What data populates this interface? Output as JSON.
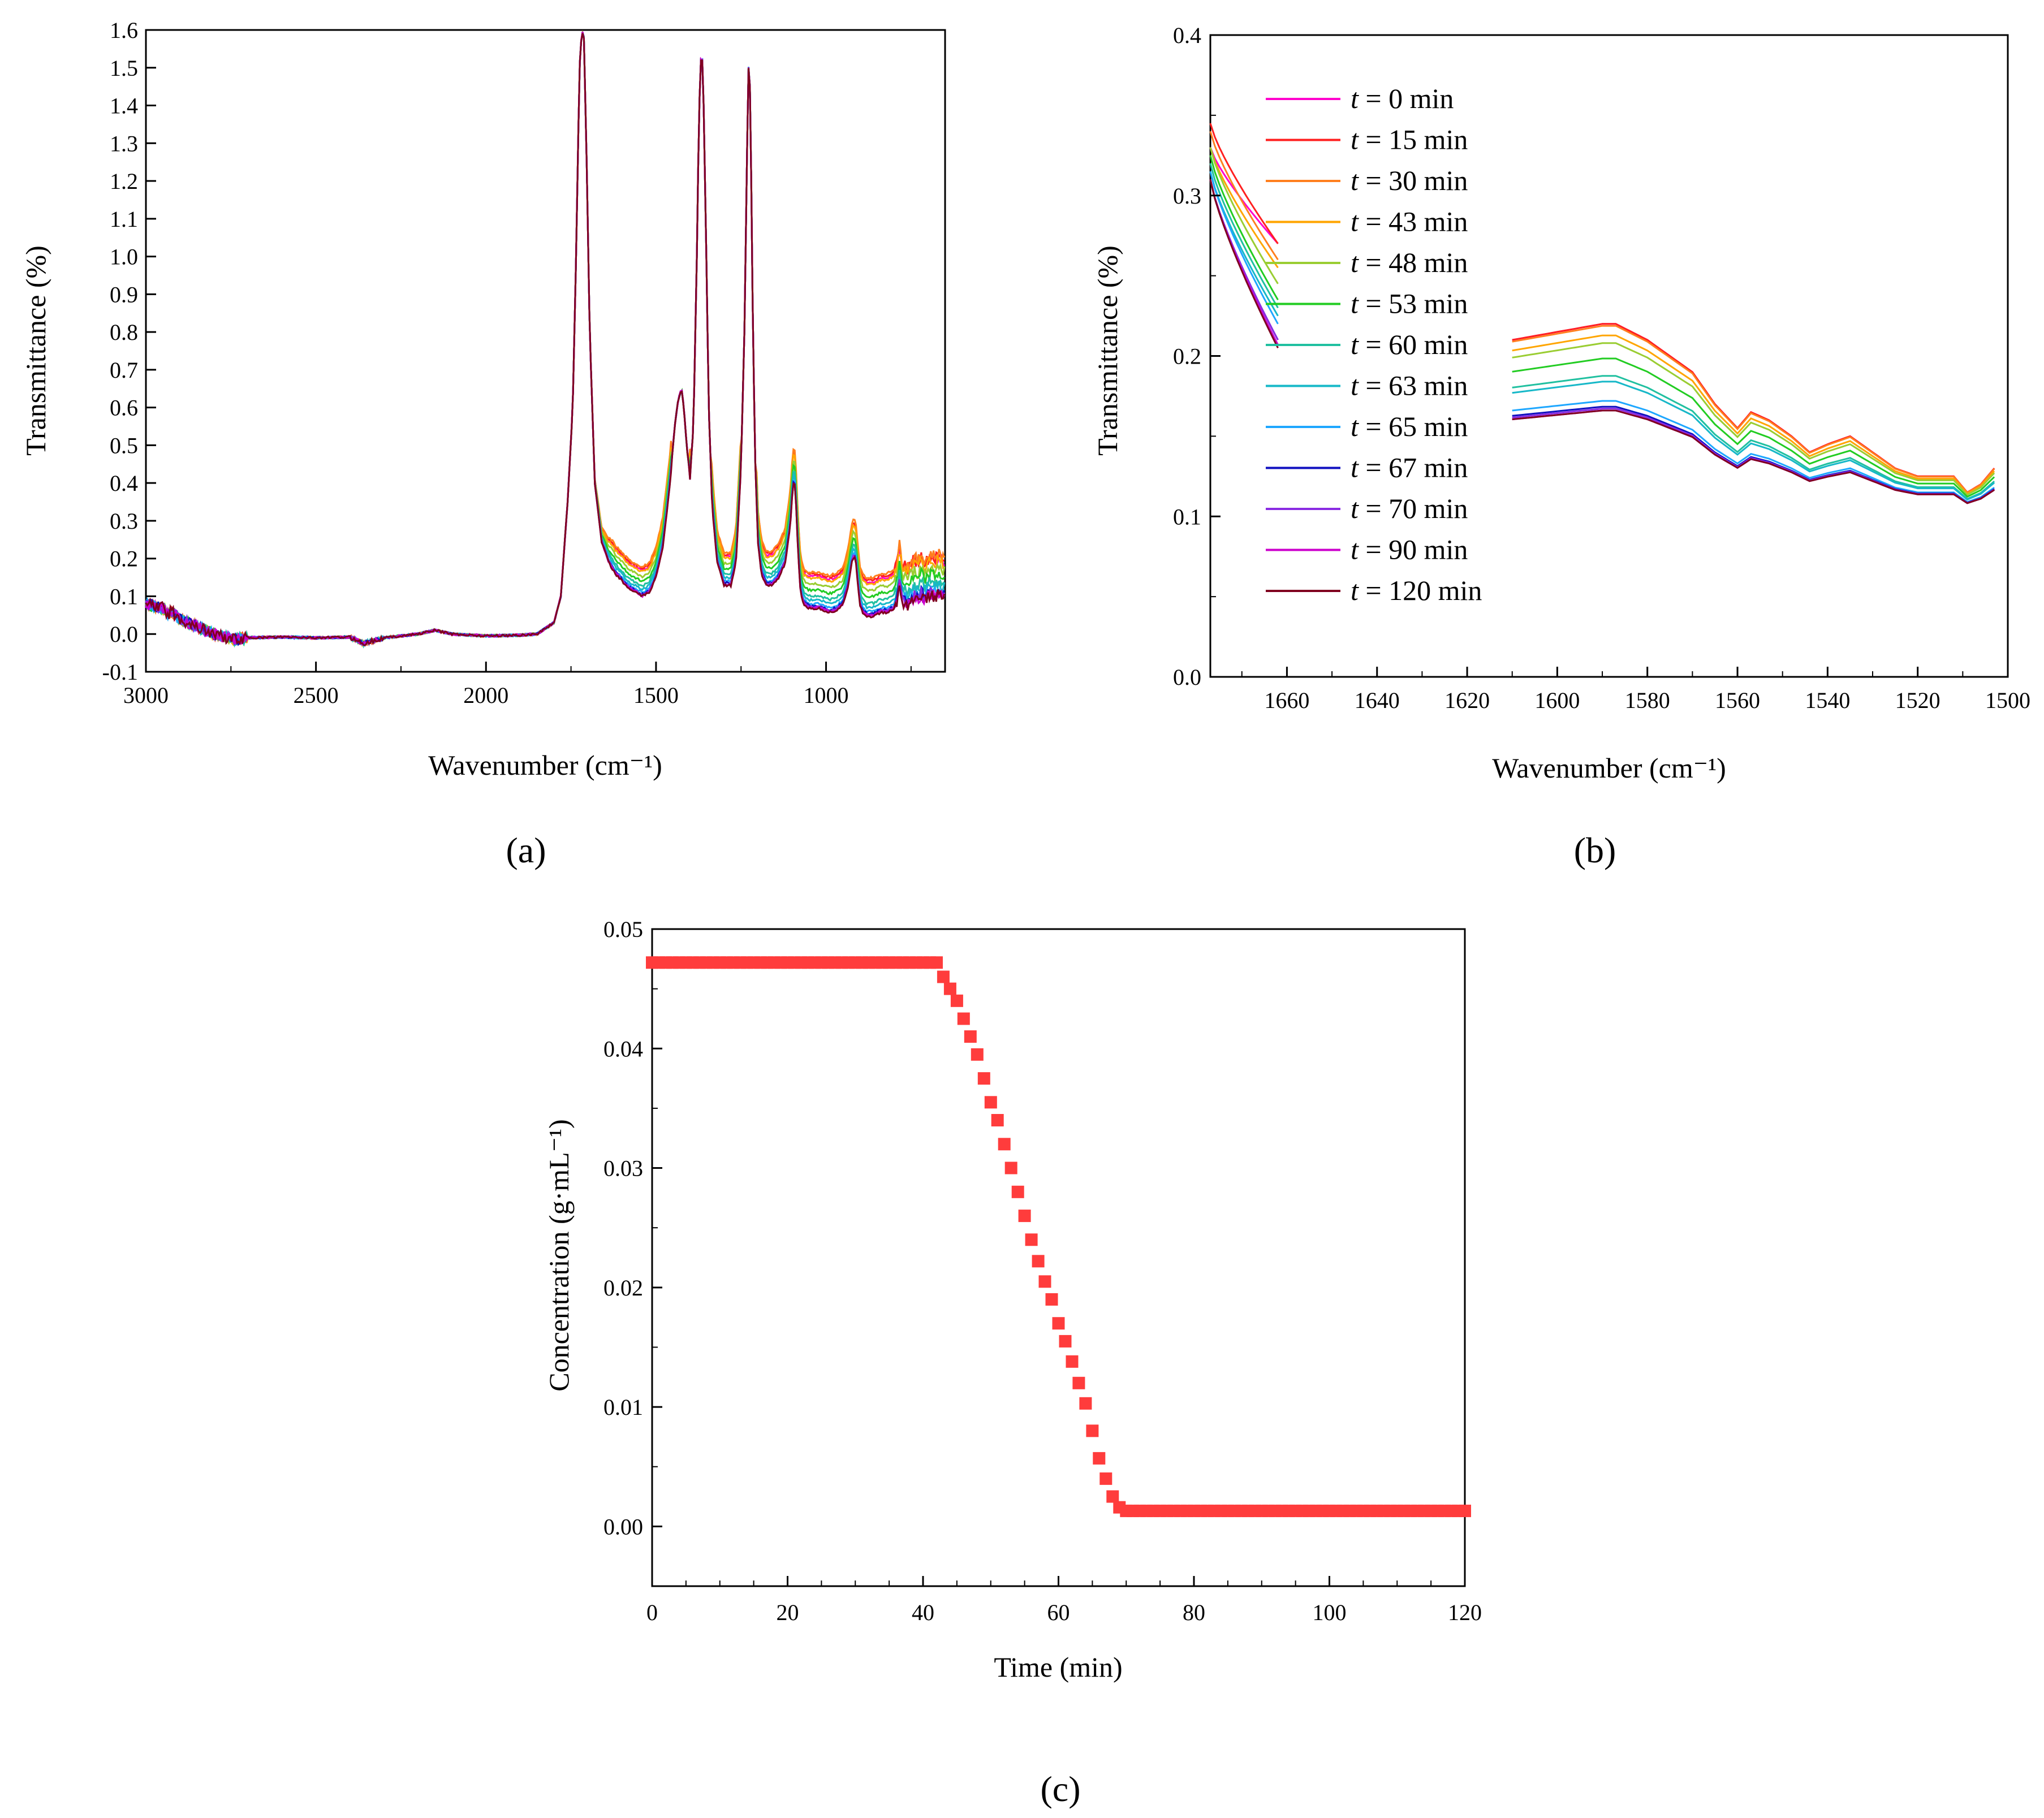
{
  "figure": {
    "panel_labels": {
      "a": "(a)",
      "b": "(b)",
      "c": "(c)"
    }
  },
  "chart_data": [
    {
      "id": "a",
      "type": "line",
      "xlabel": "Wavenumber (cm⁻¹)",
      "ylabel": "Transmittance (%)",
      "xlim": [
        3000,
        650
      ],
      "ylim": [
        -0.1,
        1.6
      ],
      "x_ticks": [
        3000,
        2500,
        2000,
        1500,
        1000
      ],
      "x_tick_labels": [
        "3000",
        "2500",
        "2000",
        "1500",
        "1000"
      ],
      "y_ticks": [
        -0.1,
        0.0,
        0.1,
        0.2,
        0.3,
        0.4,
        0.5,
        0.6,
        0.7,
        0.8,
        0.9,
        1.0,
        1.1,
        1.2,
        1.3,
        1.4,
        1.5,
        1.6
      ],
      "y_tick_labels": [
        "-0.1",
        "0.0",
        "0.1",
        "0.2",
        "0.3",
        "0.4",
        "0.5",
        "0.6",
        "0.7",
        "0.8",
        "0.9",
        "1.0",
        "1.1",
        "1.2",
        "1.3",
        "1.4",
        "1.5",
        "1.6"
      ],
      "base_x": [
        3000,
        2960,
        2950,
        2935,
        2925,
        2900,
        2850,
        2800,
        2740,
        2700,
        2600,
        2500,
        2400,
        2360,
        2300,
        2200,
        2150,
        2100,
        2000,
        1900,
        1850,
        1800,
        1780,
        1760,
        1745,
        1735,
        1725,
        1718,
        1712,
        1705,
        1695,
        1680,
        1660,
        1640,
        1620,
        1600,
        1580,
        1560,
        1540,
        1520,
        1500,
        1480,
        1460,
        1445,
        1435,
        1425,
        1418,
        1410,
        1400,
        1390,
        1380,
        1375,
        1370,
        1365,
        1360,
        1352,
        1345,
        1335,
        1320,
        1300,
        1280,
        1265,
        1250,
        1240,
        1232,
        1228,
        1224,
        1220,
        1215,
        1208,
        1200,
        1190,
        1175,
        1160,
        1140,
        1120,
        1105,
        1098,
        1093,
        1088,
        1082,
        1075,
        1065,
        1050,
        1020,
        990,
        970,
        950,
        935,
        925,
        918,
        912,
        906,
        900,
        892,
        880,
        860,
        840,
        820,
        800,
        790,
        785,
        780,
        775,
        770,
        760,
        750,
        740,
        730,
        720,
        710,
        700,
        690,
        680,
        670,
        660
      ],
      "base_y": [
        0.08,
        0.07,
        0.07,
        0.05,
        0.06,
        0.04,
        0.02,
        0.0,
        -0.015,
        -0.01,
        -0.008,
        -0.01,
        -0.008,
        -0.025,
        -0.01,
        0.0,
        0.01,
        0.0,
        -0.005,
        -0.003,
        0.0,
        0.03,
        0.1,
        0.35,
        0.6,
        1.0,
        1.5,
        1.6,
        1.58,
        1.3,
        0.8,
        0.4,
        0.25,
        0.2,
        0.17,
        0.15,
        0.13,
        0.12,
        0.11,
        0.12,
        0.16,
        0.24,
        0.4,
        0.55,
        0.62,
        0.65,
        0.6,
        0.5,
        0.42,
        0.55,
        1.0,
        1.3,
        1.5,
        1.55,
        1.4,
        1.0,
        0.6,
        0.35,
        0.2,
        0.14,
        0.14,
        0.2,
        0.45,
        0.8,
        1.3,
        1.5,
        1.45,
        1.2,
        0.8,
        0.45,
        0.25,
        0.17,
        0.14,
        0.14,
        0.16,
        0.2,
        0.3,
        0.4,
        0.42,
        0.35,
        0.22,
        0.12,
        0.09,
        0.08,
        0.08,
        0.07,
        0.075,
        0.09,
        0.14,
        0.2,
        0.22,
        0.2,
        0.14,
        0.09,
        0.07,
        0.06,
        0.06,
        0.07,
        0.07,
        0.08,
        0.1,
        0.15,
        0.12,
        0.09,
        0.1,
        0.09,
        0.1,
        0.11,
        0.1,
        0.12,
        0.1,
        0.11,
        0.12,
        0.11,
        0.12,
        0.11
      ],
      "series": [
        {
          "name": "t = 0 min",
          "color": "#ff00cc",
          "offset": 0.07
        },
        {
          "name": "t = 15 min",
          "color": "#ff2020",
          "offset": 0.075
        },
        {
          "name": "t = 30 min",
          "color": "#ff7f1e",
          "offset": 0.08
        },
        {
          "name": "t = 43 min",
          "color": "#ffa500",
          "offset": 0.065
        },
        {
          "name": "t = 48 min",
          "color": "#9acd32",
          "offset": 0.05
        },
        {
          "name": "t = 53 min",
          "color": "#22cc22",
          "offset": 0.035
        },
        {
          "name": "t = 60 min",
          "color": "#20c0a0",
          "offset": 0.02
        },
        {
          "name": "t = 63 min",
          "color": "#17b8c8",
          "offset": 0.01
        },
        {
          "name": "t = 65 min",
          "color": "#1ea7ff",
          "offset": 0.0
        },
        {
          "name": "t = 67 min",
          "color": "#1010c0",
          "offset": -0.005
        },
        {
          "name": "t = 70 min",
          "color": "#8a2be2",
          "offset": -0.008
        },
        {
          "name": "t = 90 min",
          "color": "#cc00cc",
          "offset": -0.01
        },
        {
          "name": "t = 120 min",
          "color": "#800020",
          "offset": -0.012
        }
      ]
    },
    {
      "id": "b",
      "type": "line",
      "xlabel": "Wavenumber (cm⁻¹)",
      "ylabel": "Transmittance (%)",
      "xlim": [
        1677,
        1500
      ],
      "ylim": [
        0.0,
        0.4
      ],
      "x_ticks": [
        1660,
        1640,
        1620,
        1600,
        1580,
        1560,
        1540,
        1520,
        1500
      ],
      "x_tick_labels": [
        "1660",
        "1640",
        "1620",
        "1600",
        "1580",
        "1560",
        "1540",
        "1520",
        "1500"
      ],
      "y_ticks": [
        0.0,
        0.1,
        0.2,
        0.3,
        0.4
      ],
      "y_tick_labels": [
        "0.0",
        "0.1",
        "0.2",
        "0.3",
        "0.4"
      ],
      "gap": [
        1662,
        1610
      ],
      "shape_x": [
        1677,
        1672,
        1668,
        1665,
        1662,
        1610,
        1600,
        1590,
        1587,
        1580,
        1570,
        1565,
        1560,
        1557,
        1553,
        1548,
        1544,
        1540,
        1535,
        1530,
        1525,
        1520,
        1515,
        1512,
        1509,
        1506,
        1503
      ],
      "shape_y": [
        0.34,
        0.31,
        0.29,
        0.28,
        0.27,
        0.21,
        0.215,
        0.22,
        0.22,
        0.21,
        0.19,
        0.17,
        0.155,
        0.165,
        0.16,
        0.15,
        0.14,
        0.145,
        0.15,
        0.14,
        0.13,
        0.125,
        0.125,
        0.125,
        0.115,
        0.12,
        0.13
      ],
      "legend_entries": [
        "t = 0 min",
        "t = 15 min",
        "t = 30 min",
        "t = 43 min",
        "t = 48 min",
        "t = 53 min",
        "t = 60 min",
        "t = 63 min",
        "t = 65 min",
        "t = 67 min",
        "t = 70 min",
        "t = 90 min",
        "t = 120 min"
      ],
      "legend_symbol": "t",
      "legend_suffix": [
        " = 0 min",
        " = 15 min",
        " = 30 min",
        " = 43 min",
        " = 48 min",
        " = 53 min",
        " = 60 min",
        " = 63 min",
        " = 65 min",
        " = 67 min",
        " = 70 min",
        " = 90 min",
        " = 120 min"
      ],
      "legend_placement": "top-left",
      "series_scale": [
        1.0,
        1.0,
        0.99,
        0.94,
        0.9,
        0.82,
        0.73,
        0.7,
        0.6,
        0.57,
        0.56,
        0.55,
        0.55
      ],
      "series_left_top": [
        0.33,
        0.345,
        0.34,
        0.33,
        0.33,
        0.325,
        0.32,
        0.315,
        0.315,
        0.31,
        0.31,
        0.31,
        0.31
      ],
      "series_left_end": [
        0.27,
        0.27,
        0.26,
        0.255,
        0.245,
        0.235,
        0.23,
        0.225,
        0.22,
        0.21,
        0.21,
        0.207,
        0.205
      ]
    },
    {
      "id": "c",
      "type": "scatter",
      "marker": "square",
      "color": "#ff3c3c",
      "xlabel": "Time (min)",
      "ylabel": "Concentration (g·mL⁻¹)",
      "xlim": [
        0,
        120
      ],
      "ylim": [
        -0.005,
        0.05
      ],
      "x_ticks": [
        0,
        20,
        40,
        60,
        80,
        100,
        120
      ],
      "x_tick_labels": [
        "0",
        "20",
        "40",
        "60",
        "80",
        "100",
        "120"
      ],
      "y_ticks": [
        0.0,
        0.01,
        0.02,
        0.03,
        0.04,
        0.05
      ],
      "y_tick_labels": [
        "0.00",
        "0.01",
        "0.02",
        "0.03",
        "0.04",
        "0.05"
      ],
      "points_rule": {
        "plateau_high": 0.0472,
        "plateau_low": 0.0013,
        "step_min": 1
      },
      "transition_x": [
        42,
        43,
        44,
        45,
        46,
        47,
        48,
        49,
        50,
        51,
        52,
        53,
        54,
        55,
        56,
        57,
        58,
        59,
        60,
        61,
        62,
        63,
        64,
        65,
        66,
        67,
        68,
        69
      ],
      "transition_y": [
        0.0472,
        0.046,
        0.045,
        0.044,
        0.0425,
        0.041,
        0.0395,
        0.0375,
        0.0355,
        0.034,
        0.032,
        0.03,
        0.028,
        0.026,
        0.024,
        0.0222,
        0.0205,
        0.019,
        0.017,
        0.0155,
        0.0138,
        0.012,
        0.0103,
        0.008,
        0.0057,
        0.004,
        0.0025,
        0.0016
      ]
    }
  ]
}
